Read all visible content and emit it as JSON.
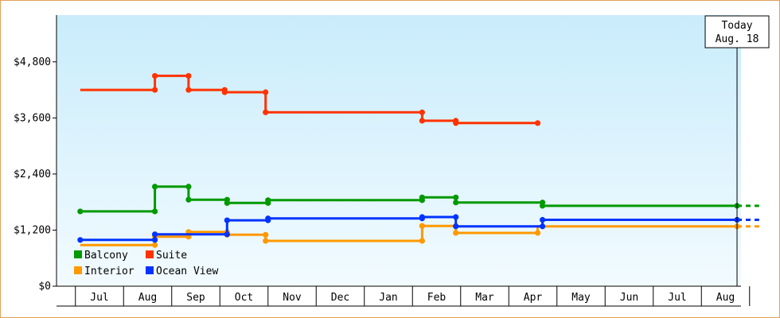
{
  "chart_data": {
    "type": "line",
    "step": true,
    "ylim": [
      0,
      5800
    ],
    "yticks": [
      {
        "value": 0,
        "label": "$0"
      },
      {
        "value": 1200,
        "label": "$1,200"
      },
      {
        "value": 2400,
        "label": "$2,400"
      },
      {
        "value": 3600,
        "label": "$3,600"
      },
      {
        "value": 4800,
        "label": "$4,800"
      }
    ],
    "x_months": [
      "Jul",
      "Aug",
      "Sep",
      "Oct",
      "Nov",
      "Dec",
      "Jan",
      "Feb",
      "Mar",
      "Apr",
      "May",
      "Jun",
      "Jul",
      "Aug"
    ],
    "today": {
      "line1": "Today",
      "line2": "Aug. 18",
      "x": 13.24
    },
    "grid": false,
    "legend_position": "bottom-left",
    "series": [
      {
        "name": "Suite",
        "color": "#ff3300",
        "points": [
          [
            -0.4,
            4200
          ],
          [
            1.15,
            4200
          ],
          [
            1.15,
            4500
          ],
          [
            1.85,
            4500
          ],
          [
            1.85,
            4200
          ],
          [
            2.6,
            4200
          ],
          [
            2.6,
            4150
          ],
          [
            3.45,
            4150
          ],
          [
            3.45,
            3720
          ],
          [
            6.7,
            3720
          ],
          [
            6.7,
            3540
          ],
          [
            7.4,
            3540
          ],
          [
            7.4,
            3490
          ],
          [
            9.1,
            3490
          ]
        ],
        "markers": [
          [
            1.15,
            4200
          ],
          [
            1.15,
            4500
          ],
          [
            1.85,
            4500
          ],
          [
            1.85,
            4200
          ],
          [
            2.6,
            4200
          ],
          [
            2.6,
            4150
          ],
          [
            3.45,
            4150
          ],
          [
            3.45,
            3720
          ],
          [
            6.7,
            3720
          ],
          [
            6.7,
            3540
          ],
          [
            7.4,
            3540
          ],
          [
            7.4,
            3490
          ],
          [
            9.1,
            3490
          ]
        ]
      },
      {
        "name": "Balcony",
        "color": "#009900",
        "points": [
          [
            -0.4,
            1600
          ],
          [
            1.15,
            1600
          ],
          [
            1.15,
            2130
          ],
          [
            1.85,
            2130
          ],
          [
            1.85,
            1850
          ],
          [
            2.65,
            1850
          ],
          [
            2.65,
            1780
          ],
          [
            3.5,
            1780
          ],
          [
            3.5,
            1840
          ],
          [
            6.7,
            1840
          ],
          [
            6.7,
            1900
          ],
          [
            7.4,
            1900
          ],
          [
            7.4,
            1790
          ],
          [
            9.2,
            1790
          ],
          [
            9.2,
            1720
          ],
          [
            13.24,
            1720
          ]
        ],
        "markers": [
          [
            -0.4,
            1600
          ],
          [
            1.15,
            1600
          ],
          [
            1.15,
            2130
          ],
          [
            1.85,
            2130
          ],
          [
            1.85,
            1850
          ],
          [
            2.65,
            1850
          ],
          [
            2.65,
            1780
          ],
          [
            3.5,
            1780
          ],
          [
            3.5,
            1840
          ],
          [
            6.7,
            1840
          ],
          [
            6.7,
            1900
          ],
          [
            7.4,
            1900
          ],
          [
            7.4,
            1790
          ],
          [
            9.2,
            1790
          ],
          [
            9.2,
            1720
          ],
          [
            13.24,
            1720
          ]
        ],
        "extension_to": 13.7
      },
      {
        "name": "Interior",
        "color": "#ff9900",
        "points": [
          [
            -0.4,
            880
          ],
          [
            1.15,
            880
          ],
          [
            1.15,
            1060
          ],
          [
            1.85,
            1060
          ],
          [
            1.85,
            1160
          ],
          [
            2.65,
            1160
          ],
          [
            2.65,
            1100
          ],
          [
            3.45,
            1100
          ],
          [
            3.45,
            970
          ],
          [
            6.7,
            970
          ],
          [
            6.7,
            1290
          ],
          [
            7.4,
            1290
          ],
          [
            7.4,
            1140
          ],
          [
            9.1,
            1140
          ],
          [
            9.1,
            1280
          ],
          [
            13.24,
            1280
          ]
        ],
        "markers": [
          [
            1.15,
            880
          ],
          [
            1.15,
            1060
          ],
          [
            1.85,
            1060
          ],
          [
            1.85,
            1160
          ],
          [
            2.65,
            1160
          ],
          [
            2.65,
            1100
          ],
          [
            3.45,
            1100
          ],
          [
            3.45,
            970
          ],
          [
            6.7,
            970
          ],
          [
            6.7,
            1290
          ],
          [
            7.4,
            1290
          ],
          [
            7.4,
            1140
          ],
          [
            9.1,
            1140
          ],
          [
            13.24,
            1280
          ]
        ],
        "extension_to": 13.7
      },
      {
        "name": "Ocean View",
        "color": "#0033ff",
        "points": [
          [
            -0.4,
            990
          ],
          [
            1.15,
            990
          ],
          [
            1.15,
            1110
          ],
          [
            2.65,
            1110
          ],
          [
            2.65,
            1410
          ],
          [
            3.5,
            1410
          ],
          [
            3.5,
            1450
          ],
          [
            6.7,
            1450
          ],
          [
            6.7,
            1480
          ],
          [
            7.4,
            1480
          ],
          [
            7.4,
            1280
          ],
          [
            9.2,
            1280
          ],
          [
            9.2,
            1420
          ],
          [
            13.24,
            1420
          ]
        ],
        "markers": [
          [
            -0.4,
            990
          ],
          [
            1.15,
            990
          ],
          [
            1.15,
            1110
          ],
          [
            2.65,
            1110
          ],
          [
            2.65,
            1410
          ],
          [
            3.5,
            1410
          ],
          [
            3.5,
            1450
          ],
          [
            6.7,
            1450
          ],
          [
            6.7,
            1480
          ],
          [
            7.4,
            1480
          ],
          [
            7.4,
            1280
          ],
          [
            9.2,
            1280
          ],
          [
            9.2,
            1420
          ],
          [
            13.24,
            1420
          ]
        ],
        "extension_to": 13.7
      }
    ],
    "legend": [
      {
        "name": "Balcony",
        "color": "#009900"
      },
      {
        "name": "Suite",
        "color": "#ff3300"
      },
      {
        "name": "Interior",
        "color": "#ff9900"
      },
      {
        "name": "Ocean View",
        "color": "#0033ff"
      }
    ]
  }
}
